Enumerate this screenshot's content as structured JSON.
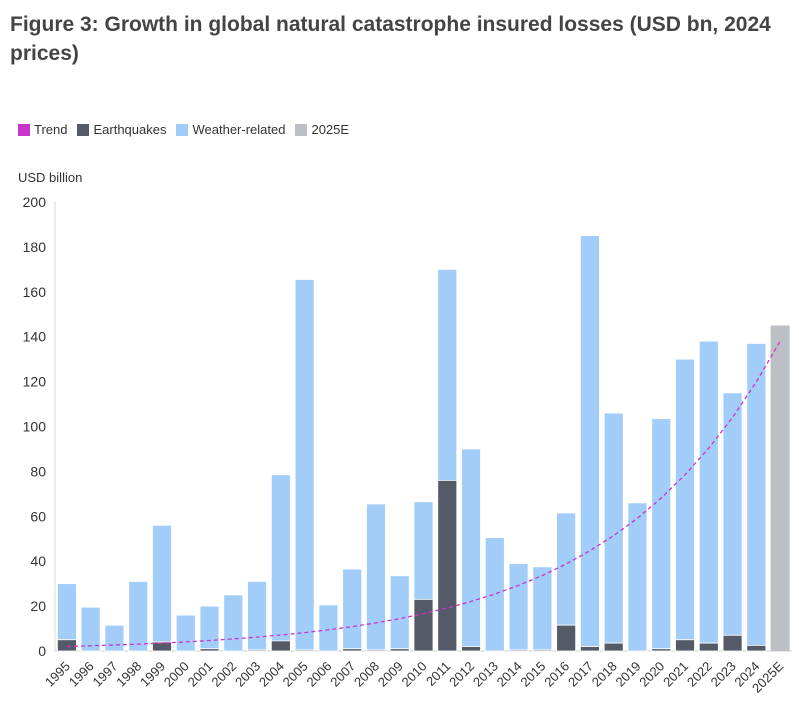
{
  "figure_title": "Figure 3: Growth in global natural catastrophe insured losses (USD bn, 2024 prices)",
  "colors": {
    "trend": "#c935c9",
    "earthquakes": "#555a68",
    "weather": "#a3cdf9",
    "estimate": "#bcc0c6"
  },
  "legend": [
    {
      "label": "Trend",
      "color": "#c935c9"
    },
    {
      "label": "Earthquakes",
      "color": "#555a68"
    },
    {
      "label": "Weather-related",
      "color": "#a3cdf9"
    },
    {
      "label": "2025E",
      "color": "#bcc0c6"
    }
  ],
  "chart_data": {
    "type": "bar",
    "stacked": true,
    "title": "",
    "ylabel": "USD billion",
    "ylim": [
      0,
      200
    ],
    "yticks": [
      0,
      20,
      40,
      60,
      80,
      100,
      120,
      140,
      160,
      180,
      200
    ],
    "categories": [
      "1995",
      "1996",
      "1997",
      "1998",
      "1999",
      "2000",
      "2001",
      "2002",
      "2003",
      "2004",
      "2005",
      "2006",
      "2007",
      "2008",
      "2009",
      "2010",
      "2011",
      "2012",
      "2013",
      "2014",
      "2015",
      "2016",
      "2017",
      "2018",
      "2019",
      "2020",
      "2021",
      "2022",
      "2023",
      "2024",
      "2025E"
    ],
    "series": [
      {
        "name": "Earthquakes",
        "values": [
          5,
          0,
          0,
          0,
          4,
          0,
          1,
          0,
          0.5,
          4.5,
          0.5,
          0,
          1,
          0.5,
          1,
          23,
          76,
          2,
          0,
          0.5,
          0.5,
          11.5,
          2,
          3.5,
          0,
          1,
          5,
          3.5,
          7,
          2.5,
          0
        ]
      },
      {
        "name": "Weather-related",
        "values": [
          25,
          19.5,
          11.5,
          31,
          52,
          16,
          19,
          25,
          30.5,
          74,
          165,
          20.5,
          35.5,
          65,
          32.5,
          43.5,
          94,
          88,
          50.5,
          38.5,
          37,
          50,
          183,
          102.5,
          66,
          102.5,
          125,
          134.5,
          108,
          134.5,
          0
        ]
      },
      {
        "name": "2025E",
        "values": [
          0,
          0,
          0,
          0,
          0,
          0,
          0,
          0,
          0,
          0,
          0,
          0,
          0,
          0,
          0,
          0,
          0,
          0,
          0,
          0,
          0,
          0,
          0,
          0,
          0,
          0,
          0,
          0,
          0,
          0,
          145
        ]
      }
    ],
    "trend": {
      "name": "Trend",
      "start": 2,
      "end": 138
    },
    "legend_position": "top-left",
    "grid": false
  }
}
